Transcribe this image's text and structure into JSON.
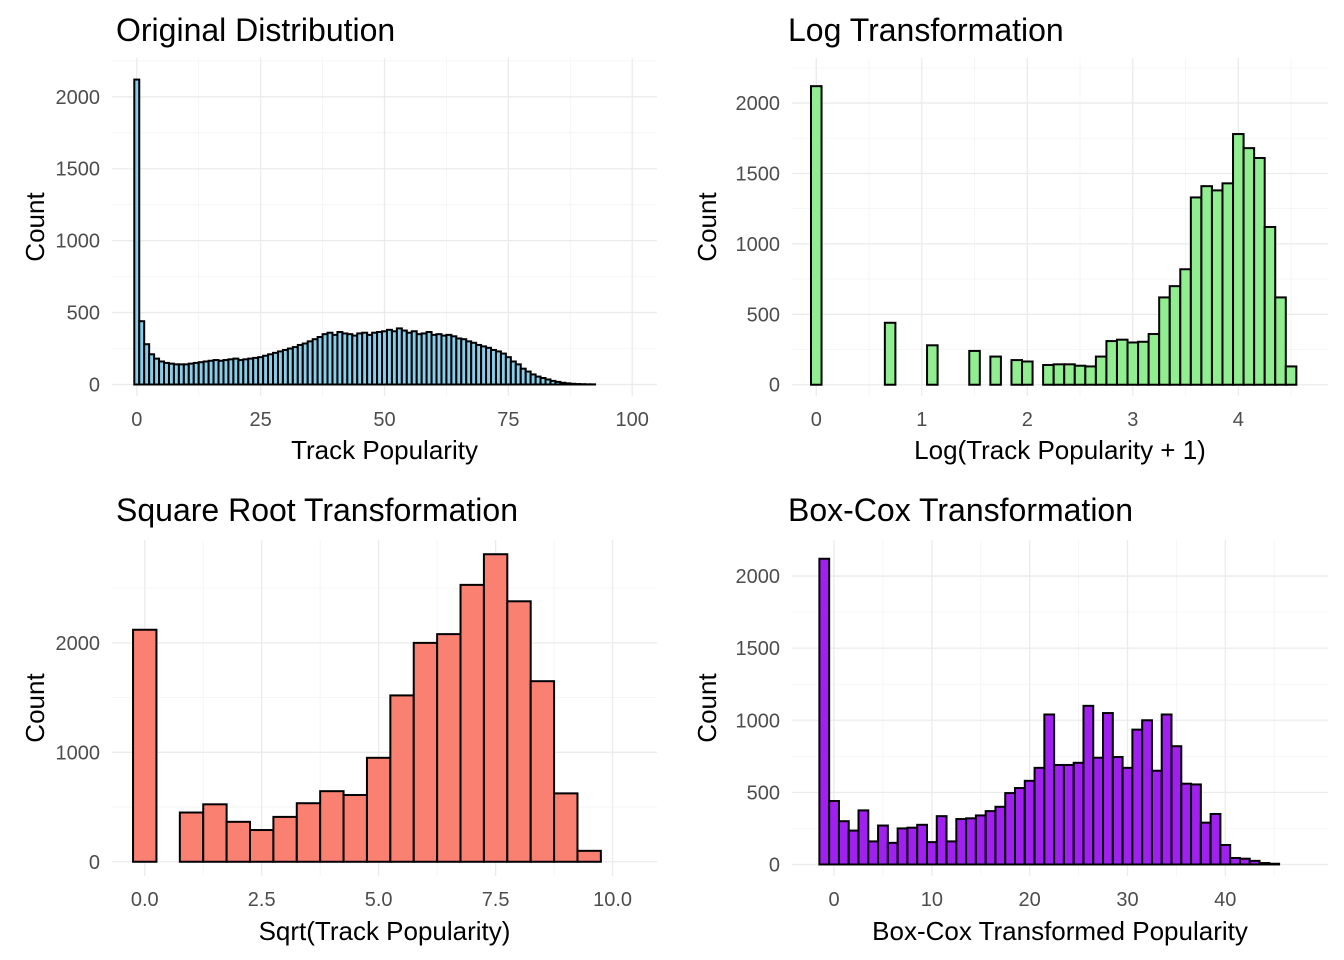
{
  "chart_data": [
    {
      "type": "bar",
      "title": "Original Distribution",
      "xlabel": "Track Popularity",
      "ylabel": "Count",
      "fill": "#87CEEB",
      "xlim": [
        -5,
        105
      ],
      "ylim": [
        -80,
        2270
      ],
      "x_ticks": [
        0,
        25,
        50,
        75,
        100
      ],
      "x_tick_labels": [
        "0",
        "25",
        "50",
        "75",
        "100"
      ],
      "y_ticks": [
        0,
        500,
        1000,
        1500,
        2000
      ],
      "y_tick_labels": [
        "0",
        "500",
        "1000",
        "1500",
        "2000"
      ],
      "bin_start": -0.5,
      "bin_width": 1,
      "values": [
        2120,
        440,
        280,
        210,
        180,
        160,
        150,
        145,
        140,
        140,
        140,
        145,
        150,
        155,
        160,
        165,
        170,
        165,
        170,
        175,
        180,
        170,
        175,
        180,
        185,
        190,
        200,
        210,
        220,
        230,
        240,
        250,
        260,
        275,
        285,
        300,
        315,
        330,
        350,
        360,
        345,
        365,
        355,
        350,
        340,
        355,
        360,
        345,
        360,
        365,
        370,
        380,
        370,
        390,
        375,
        360,
        370,
        350,
        355,
        365,
        345,
        350,
        340,
        345,
        335,
        320,
        315,
        300,
        290,
        275,
        265,
        255,
        240,
        230,
        215,
        190,
        160,
        140,
        110,
        90,
        70,
        55,
        45,
        35,
        25,
        18,
        12,
        8,
        5,
        3,
        2,
        1,
        1,
        0,
        0,
        0,
        0,
        0,
        0,
        0,
        0
      ]
    },
    {
      "type": "bar",
      "title": "Log Transformation",
      "xlabel": "Log(Track Popularity + 1)",
      "ylabel": "Count",
      "fill": "#90EE90",
      "xlim": [
        -0.23,
        4.85
      ],
      "ylim": [
        -80,
        2320
      ],
      "x_ticks": [
        0,
        1,
        2,
        3,
        4
      ],
      "x_tick_labels": [
        "0",
        "1",
        "2",
        "3",
        "4"
      ],
      "y_ticks": [
        0,
        500,
        1000,
        1500,
        2000
      ],
      "y_tick_labels": [
        "0",
        "500",
        "1000",
        "1500",
        "2000"
      ],
      "bin_start": -0.05,
      "bin_width": 0.1,
      "values": [
        2120,
        0,
        0,
        0,
        0,
        0,
        0,
        440,
        0,
        0,
        0,
        280,
        0,
        0,
        0,
        240,
        0,
        200,
        0,
        175,
        165,
        0,
        140,
        145,
        145,
        135,
        130,
        200,
        310,
        320,
        300,
        305,
        360,
        620,
        700,
        820,
        1330,
        1410,
        1380,
        1430,
        1780,
        1680,
        1610,
        1120,
        620,
        130
      ]
    },
    {
      "type": "bar",
      "title": "Square Root Transformation",
      "xlabel": "Sqrt(Track Popularity)",
      "ylabel": "Count",
      "fill": "#FA8072",
      "xlim": [
        -0.7,
        10.95
      ],
      "ylim": [
        -130,
        2940
      ],
      "x_ticks": [
        0,
        2.5,
        5,
        7.5,
        10
      ],
      "x_tick_labels": [
        "0.0",
        "2.5",
        "5.0",
        "7.5",
        "10.0"
      ],
      "y_ticks": [
        0,
        1000,
        2000
      ],
      "y_tick_labels": [
        "0",
        "1000",
        "2000"
      ],
      "bin_start": -0.25,
      "bin_width": 0.5,
      "values": [
        2120,
        0,
        450,
        525,
        365,
        290,
        410,
        535,
        645,
        610,
        950,
        1520,
        2000,
        2080,
        2530,
        2810,
        2380,
        1650,
        625,
        100,
        0
      ]
    },
    {
      "type": "bar",
      "title": "Box-Cox Transformation",
      "xlabel": "Box-Cox Transformed Popularity",
      "ylabel": "Count",
      "fill": "#A020F0",
      "xlim": [
        -4.3,
        50.5
      ],
      "ylim": [
        -80,
        2250
      ],
      "x_ticks": [
        0,
        10,
        20,
        30,
        40
      ],
      "x_tick_labels": [
        "0",
        "10",
        "20",
        "30",
        "40"
      ],
      "y_ticks": [
        0,
        500,
        1000,
        1500,
        2000
      ],
      "y_tick_labels": [
        "0",
        "500",
        "1000",
        "1500",
        "2000"
      ],
      "bin_start": -1.5,
      "bin_width": 1,
      "values": [
        2120,
        440,
        300,
        235,
        375,
        160,
        270,
        150,
        250,
        255,
        275,
        155,
        335,
        160,
        315,
        320,
        340,
        370,
        400,
        495,
        530,
        580,
        670,
        1040,
        690,
        690,
        705,
        1100,
        740,
        1050,
        745,
        670,
        935,
        1000,
        650,
        1040,
        820,
        560,
        555,
        290,
        350,
        135,
        45,
        40,
        25,
        10,
        5,
        0
      ]
    }
  ]
}
